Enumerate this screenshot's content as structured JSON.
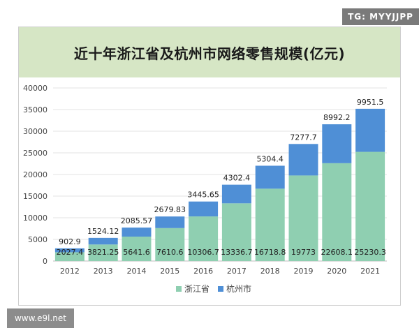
{
  "watermarks": {
    "top": "TG: MYYJJPP",
    "bottom": "www.e9l.net"
  },
  "chart_data": {
    "type": "bar",
    "stacked": true,
    "title": "近十年浙江省及杭州市网络零售规模(亿元)",
    "categories": [
      "2012",
      "2013",
      "2014",
      "2015",
      "2016",
      "2017",
      "2018",
      "2019",
      "2020",
      "2021"
    ],
    "ylim": [
      0,
      40000
    ],
    "yticks": [
      0,
      5000,
      10000,
      15000,
      20000,
      25000,
      30000,
      35000,
      40000
    ],
    "grid": true,
    "legend": "bottom",
    "series": [
      {
        "name": "浙江省",
        "color": "#8fcfb1",
        "values": [
          2027.4,
          3821.25,
          5641.6,
          7610.6,
          10306.7,
          13336.7,
          16718.8,
          19773,
          22608.1,
          25230.3
        ],
        "labels": [
          "2027.4",
          "3821.25",
          "5641.6",
          "7610.6",
          "10306.7",
          "13336.7",
          "16718.8",
          "19773",
          "22608.1",
          "25230.3"
        ]
      },
      {
        "name": "杭州市",
        "color": "#4f8fd6",
        "values": [
          902.9,
          1524.12,
          2085.57,
          2679.83,
          3445.65,
          4302.4,
          5304.4,
          7277.7,
          8992.2,
          9951.5
        ],
        "labels": [
          "902.9",
          "1524.12",
          "2085.57",
          "2679.83",
          "3445.65",
          "4302.4",
          "5304.4",
          "7277.7",
          "8992.2",
          "9951.5"
        ]
      }
    ]
  }
}
